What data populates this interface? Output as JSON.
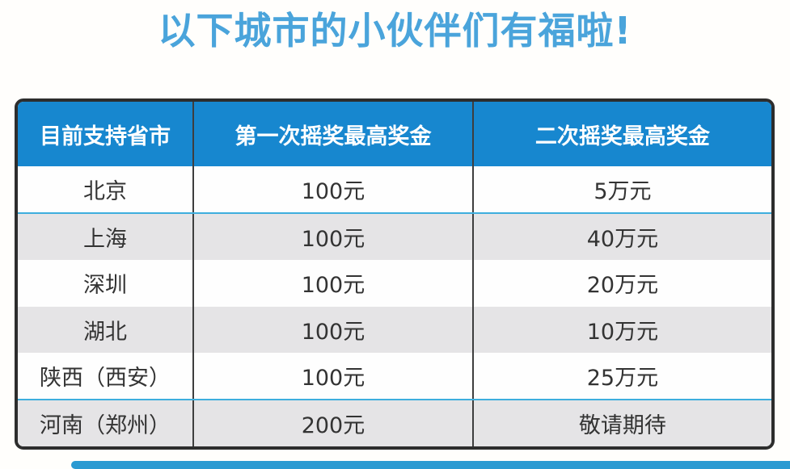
{
  "title": "以下城市的小伙伴们有福啦!",
  "colors": {
    "title_blue": "#4aa4db",
    "header_blue": "#1787cf",
    "row_gray": "#e5e4e6",
    "row_white": "#fefefe",
    "outer_border_dark": "#2d2d2d",
    "column_divider_dark": "#3e3e3e",
    "row_divider_cyan": "#3eaede",
    "bottom_bar_blue": "#2a9ad2",
    "cell_text": "#333333"
  },
  "table": {
    "headers": [
      "目前支持省市",
      "第一次摇奖最高奖金",
      "二次摇奖最高奖金"
    ],
    "rows": [
      [
        "北京",
        "100元",
        "5万元"
      ],
      [
        "上海",
        "100元",
        "40万元"
      ],
      [
        "深圳",
        "100元",
        "20万元"
      ],
      [
        "湖北",
        "100元",
        "10万元"
      ],
      [
        "陕西（西安）",
        "100元",
        "25万元"
      ],
      [
        "河南（郑州）",
        "200元",
        "敬请期待"
      ]
    ]
  },
  "chart_data": {
    "type": "table",
    "title": "以下城市的小伙伴们有福啦!",
    "columns": [
      "目前支持省市",
      "第一次摇奖最高奖金",
      "二次摇奖最高奖金"
    ],
    "rows": [
      [
        "北京",
        "100元",
        "5万元"
      ],
      [
        "上海",
        "100元",
        "40万元"
      ],
      [
        "深圳",
        "100元",
        "20万元"
      ],
      [
        "湖北",
        "100元",
        "10万元"
      ],
      [
        "陕西（西安）",
        "100元",
        "25万元"
      ],
      [
        "河南（郑州）",
        "200元",
        "敬请期待"
      ]
    ],
    "layout": {
      "header_background": "#1787cf",
      "row_striping": [
        "white",
        "gray"
      ],
      "cyan_divider_below_rows": [
        1,
        5
      ]
    }
  }
}
